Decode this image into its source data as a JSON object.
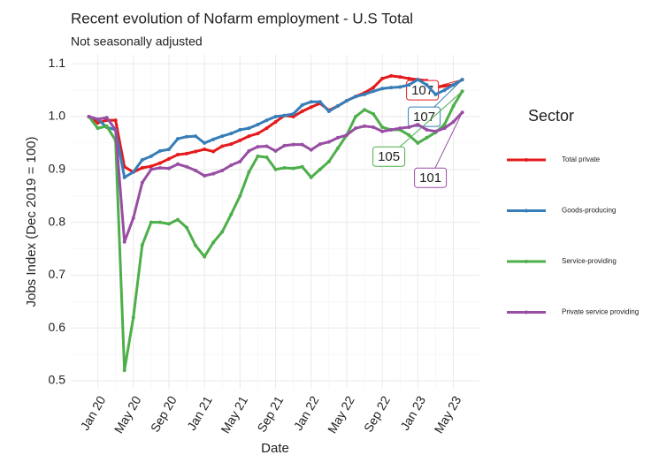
{
  "chart_data": {
    "type": "line",
    "title": "Recent evolution of Nofarm employment - U.S Total",
    "subtitle": "Not seasonally adjusted",
    "x_label": "Date",
    "y_label": "Jobs Index (Dec 2019 = 100)",
    "legend_title": "Sector",
    "categories": [
      null,
      "Jan 20",
      null,
      null,
      null,
      "May 20",
      null,
      null,
      null,
      "Sep 20",
      null,
      null,
      null,
      "Jan 21",
      null,
      null,
      null,
      "May 21",
      null,
      null,
      null,
      "Sep 21",
      null,
      null,
      null,
      "Jan 22",
      null,
      null,
      null,
      "May 22",
      null,
      null,
      null,
      "Sep 22",
      null,
      null,
      null,
      "Jan 23",
      null,
      null,
      null,
      "May 23",
      null
    ],
    "ylim": [
      0.485,
      1.117
    ],
    "yticks": [
      0.5,
      0.6,
      0.7,
      0.8,
      0.9,
      {
        "value": 1,
        "label": "1.0"
      },
      1.1
    ],
    "grid": true,
    "legend": "right",
    "series": [
      {
        "name": "Total private",
        "color": "#e41a1c",
        "end_label": "107",
        "values": [
          1.0,
          0.988,
          0.993,
          0.993,
          0.905,
          0.895,
          0.903,
          0.906,
          0.912,
          0.92,
          0.928,
          0.93,
          0.934,
          0.938,
          0.934,
          0.944,
          0.948,
          0.955,
          0.963,
          0.968,
          0.978,
          0.99,
          1.002,
          1.0,
          1.01,
          1.018,
          1.025,
          1.012,
          1.02,
          1.03,
          1.038,
          1.045,
          1.055,
          1.072,
          1.077,
          1.075,
          1.072,
          1.07,
          1.068,
          1.055,
          1.058,
          1.06,
          1.07
        ]
      },
      {
        "name": "Goods-producing",
        "color": "#377eb8",
        "end_label": "107",
        "values": [
          1.0,
          0.995,
          0.98,
          0.975,
          0.885,
          0.895,
          0.918,
          0.925,
          0.935,
          0.938,
          0.958,
          0.962,
          0.963,
          0.95,
          0.957,
          0.963,
          0.968,
          0.975,
          0.978,
          0.985,
          0.993,
          1.0,
          1.002,
          1.005,
          1.022,
          1.028,
          1.028,
          1.01,
          1.02,
          1.03,
          1.038,
          1.042,
          1.048,
          1.053,
          1.055,
          1.056,
          1.06,
          1.07,
          1.06,
          1.042,
          1.05,
          1.06,
          1.07
        ]
      },
      {
        "name": "Service-providing",
        "color": "#4daf4a",
        "end_label": "105",
        "values": [
          1.0,
          0.978,
          0.982,
          0.955,
          0.52,
          0.62,
          0.757,
          0.8,
          0.8,
          0.797,
          0.805,
          0.79,
          0.756,
          0.735,
          0.762,
          0.782,
          0.815,
          0.85,
          0.895,
          0.925,
          0.923,
          0.9,
          0.903,
          0.902,
          0.905,
          0.885,
          0.9,
          0.915,
          0.94,
          0.965,
          1.0,
          1.013,
          1.005,
          0.98,
          0.975,
          0.975,
          0.965,
          0.95,
          0.96,
          0.97,
          0.985,
          1.02,
          1.048
        ]
      },
      {
        "name": "Private service providing",
        "color": "#984ea3",
        "end_label": "101",
        "values": [
          1.0,
          0.995,
          0.998,
          0.975,
          0.763,
          0.808,
          0.875,
          0.9,
          0.903,
          0.902,
          0.91,
          0.905,
          0.898,
          0.888,
          0.892,
          0.898,
          0.908,
          0.915,
          0.935,
          0.943,
          0.944,
          0.935,
          0.945,
          0.947,
          0.947,
          0.937,
          0.948,
          0.952,
          0.96,
          0.965,
          0.978,
          0.982,
          0.98,
          0.972,
          0.975,
          0.978,
          0.98,
          0.985,
          0.975,
          0.972,
          0.978,
          0.99,
          1.008
        ]
      }
    ]
  }
}
